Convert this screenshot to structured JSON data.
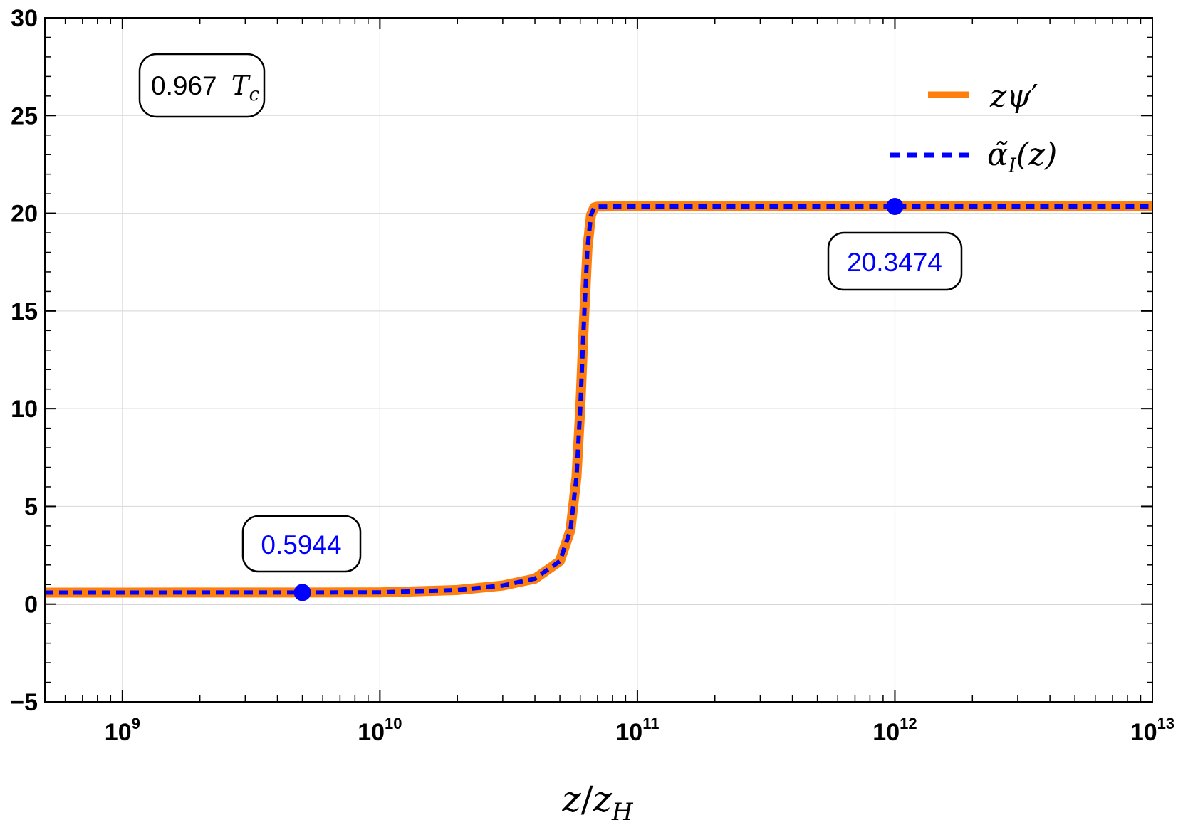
{
  "chart_data": {
    "type": "line",
    "x_scale": "log",
    "xlim": [
      500000000.0,
      10000000000000.0
    ],
    "ylim": [
      -5,
      30
    ],
    "grid": true,
    "xlabel": {
      "main": "z",
      "slash": "/",
      "base": "z",
      "sub": "H"
    },
    "xticks": [
      {
        "base": "10",
        "exp": "9",
        "value": 1000000000.0
      },
      {
        "base": "10",
        "exp": "10",
        "value": 10000000000.0
      },
      {
        "base": "10",
        "exp": "11",
        "value": 100000000000.0
      },
      {
        "base": "10",
        "exp": "12",
        "value": 1000000000000.0
      },
      {
        "base": "10",
        "exp": "13",
        "value": 10000000000000.0
      }
    ],
    "yticks": [
      "−5",
      "0",
      "5",
      "10",
      "15",
      "20",
      "25",
      "30"
    ],
    "yticks_values": [
      -5,
      0,
      5,
      10,
      15,
      20,
      25,
      30
    ],
    "legend_position": "top-right",
    "series": [
      {
        "name": "zψ′",
        "style": "solid",
        "color": "#ff7f0e",
        "x": [
          500000000.0,
          1000000000.0,
          2000000000.0,
          5000000000.0,
          10000000000.0,
          20000000000.0,
          30000000000.0,
          40000000000.0,
          50000000000.0,
          55000000000.0,
          58000000000.0,
          60000000000.0,
          62000000000.0,
          64000000000.0,
          66000000000.0,
          68000000000.0,
          70000000000.0,
          80000000000.0,
          100000000000.0,
          1000000000000.0,
          10000000000000.0
        ],
        "y": [
          0.59,
          0.59,
          0.594,
          0.594,
          0.6,
          0.72,
          0.95,
          1.3,
          2.2,
          3.8,
          6.5,
          10.0,
          14.5,
          18.2,
          19.9,
          20.3,
          20.34,
          20.347,
          20.347,
          20.347,
          20.347
        ]
      },
      {
        "name": "α̃_I(z)",
        "style": "dashed",
        "color": "#0000ff",
        "x": [
          500000000.0,
          1000000000.0,
          2000000000.0,
          5000000000.0,
          10000000000.0,
          20000000000.0,
          30000000000.0,
          40000000000.0,
          50000000000.0,
          55000000000.0,
          58000000000.0,
          60000000000.0,
          62000000000.0,
          64000000000.0,
          66000000000.0,
          68000000000.0,
          70000000000.0,
          80000000000.0,
          100000000000.0,
          1000000000000.0,
          10000000000000.0
        ],
        "y": [
          0.59,
          0.59,
          0.594,
          0.594,
          0.6,
          0.72,
          0.95,
          1.3,
          2.2,
          3.8,
          6.5,
          10.0,
          14.5,
          18.2,
          19.9,
          20.3,
          20.34,
          20.347,
          20.347,
          20.347,
          20.347
        ]
      }
    ],
    "legend": {
      "orange": {
        "main": "z",
        "psi": "ψ",
        "prime": "′"
      },
      "blue": {
        "alpha": "α̃",
        "sub": "I",
        "arg": "(z)"
      }
    },
    "annotations": [
      {
        "name": "temperature-label",
        "number": "0.967",
        "symbol": "T",
        "sub": "c"
      },
      {
        "name": "low-value-label",
        "text": "0.5944",
        "x": 5000000000.0,
        "y": 0.5944,
        "color": "#0000ff"
      },
      {
        "name": "high-value-label",
        "text": "20.3474",
        "x": 1000000000000.0,
        "y": 20.3474,
        "color": "#0000ff"
      }
    ],
    "marker_color": "#0000ff"
  }
}
